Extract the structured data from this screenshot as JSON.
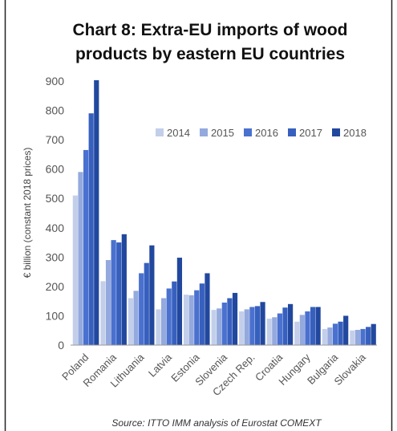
{
  "chart_data": {
    "type": "bar",
    "title_line1": "Chart 8: Extra-EU imports of wood",
    "title_line2": "products by eastern EU countries",
    "ylabel": "€ billion (constant 2018 prices)",
    "ylim": [
      0,
      900
    ],
    "yticks": [
      0,
      100,
      200,
      300,
      400,
      500,
      600,
      700,
      800,
      900
    ],
    "grid": false,
    "legend_position": "top-right",
    "source": "Source: ITTO IMM analysis of Eurostat COMEXT",
    "categories": [
      "Poland",
      "Romania",
      "Lithuania",
      "Latvia",
      "Estonia",
      "Slovenia",
      "Czech Rep.",
      "Croatia",
      "Hungary",
      "Bulgaria",
      "Slovakia"
    ],
    "series": [
      {
        "name": "2014",
        "color": "#c3cfea",
        "values": [
          510,
          218,
          160,
          122,
          172,
          120,
          115,
          90,
          80,
          55,
          50
        ]
      },
      {
        "name": "2015",
        "color": "#94a9dd",
        "values": [
          590,
          290,
          185,
          160,
          170,
          125,
          122,
          95,
          103,
          60,
          52
        ]
      },
      {
        "name": "2016",
        "color": "#4a71cf",
        "values": [
          665,
          358,
          245,
          193,
          187,
          145,
          130,
          108,
          115,
          73,
          55
        ]
      },
      {
        "name": "2017",
        "color": "#3760be",
        "values": [
          790,
          350,
          280,
          217,
          210,
          160,
          133,
          128,
          130,
          80,
          62
        ]
      },
      {
        "name": "2018",
        "color": "#22489e",
        "values": [
          903,
          378,
          340,
          298,
          245,
          178,
          147,
          140,
          130,
          100,
          72
        ]
      }
    ]
  }
}
